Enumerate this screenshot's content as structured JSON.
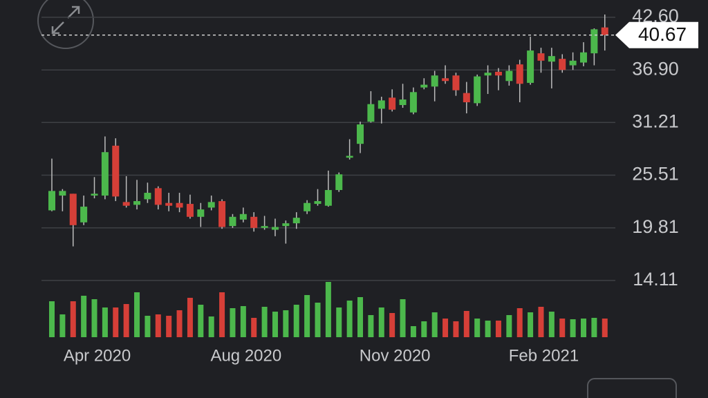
{
  "chart_data": {
    "type": "candlestick",
    "categories": [
      null,
      null,
      null,
      null,
      "Apr 2020",
      null,
      null,
      null,
      null,
      null,
      null,
      null,
      null,
      null,
      null,
      null,
      null,
      null,
      "Aug 2020",
      null,
      null,
      null,
      null,
      null,
      null,
      null,
      null,
      null,
      null,
      null,
      null,
      null,
      "Nov 2020",
      null,
      null,
      null,
      null,
      null,
      null,
      null,
      null,
      null,
      null,
      null,
      null,
      null,
      "Feb 2021",
      null,
      null,
      null,
      null,
      null,
      null
    ],
    "open": [
      21.7,
      23.3,
      23.5,
      20.4,
      23.3,
      23.3,
      28.7,
      22.6,
      22.3,
      22.9,
      24.1,
      22.5,
      22.5,
      22.4,
      21.0,
      22.0,
      22.7,
      20.0,
      20.7,
      21.0,
      19.8,
      19.6,
      20.0,
      20.3,
      21.6,
      22.4,
      22.2,
      23.9,
      27.4,
      28.9,
      31.3,
      32.7,
      33.9,
      33.1,
      32.3,
      35.0,
      35.1,
      36.0,
      36.3,
      34.4,
      33.3,
      36.3,
      36.7,
      35.7,
      37.5,
      35.5,
      38.7,
      37.8,
      38.1,
      37.4,
      37.7,
      38.7,
      41.5
    ],
    "high": [
      27.3,
      24.0,
      23.5,
      23.3,
      25.3,
      29.7,
      29.5,
      25.4,
      25.0,
      24.7,
      24.3,
      23.6,
      23.6,
      23.4,
      22.5,
      23.3,
      22.9,
      21.3,
      22.0,
      21.5,
      21.1,
      20.8,
      20.6,
      21.5,
      22.8,
      24.0,
      26.0,
      25.8,
      29.4,
      31.3,
      34.6,
      34.0,
      34.8,
      35.4,
      35.0,
      36.0,
      36.8,
      37.4,
      36.6,
      35.6,
      36.4,
      37.4,
      37.1,
      37.4,
      38.0,
      40.5,
      39.3,
      39.3,
      38.6,
      38.8,
      39.9,
      41.4,
      42.9
    ],
    "low": [
      21.6,
      21.6,
      17.8,
      20.1,
      23.0,
      22.9,
      22.7,
      22.0,
      21.8,
      22.5,
      21.8,
      21.6,
      21.5,
      20.8,
      19.9,
      21.7,
      19.7,
      19.8,
      20.4,
      19.4,
      19.6,
      18.9,
      18.1,
      19.7,
      21.3,
      22.2,
      22.1,
      23.7,
      27.2,
      27.9,
      31.2,
      31.1,
      32.4,
      32.8,
      32.1,
      34.8,
      33.5,
      35.4,
      34.1,
      32.2,
      33.0,
      34.3,
      34.7,
      35.2,
      33.4,
      35.3,
      36.6,
      34.9,
      36.6,
      36.9,
      37.3,
      37.4,
      39.0
    ],
    "close": [
      23.8,
      23.8,
      20.1,
      22.1,
      23.5,
      28.0,
      23.2,
      22.2,
      22.7,
      23.6,
      22.3,
      22.2,
      22.0,
      21.0,
      21.8,
      22.6,
      19.9,
      21.0,
      21.3,
      19.8,
      20.0,
      19.9,
      20.3,
      20.9,
      22.5,
      22.7,
      23.9,
      25.6,
      27.6,
      31.0,
      33.2,
      33.6,
      32.6,
      33.7,
      34.5,
      35.3,
      36.3,
      35.7,
      34.7,
      33.4,
      36.2,
      36.6,
      36.3,
      36.8,
      35.4,
      39.0,
      37.9,
      38.4,
      36.9,
      37.9,
      38.8,
      41.3,
      40.67
    ],
    "volume": [
      52,
      33,
      52,
      60,
      55,
      43,
      43,
      48,
      65,
      31,
      33,
      31,
      39,
      57,
      47,
      30,
      65,
      42,
      45,
      28,
      44,
      37,
      39,
      47,
      61,
      50,
      80,
      43,
      53,
      58,
      32,
      43,
      35,
      55,
      16,
      23,
      36,
      27,
      23,
      38,
      27,
      24,
      24,
      32,
      42,
      36,
      44,
      37,
      27,
      26,
      27,
      28,
      27
    ],
    "up_color": "#4cb84c",
    "down_color": "#d63f38",
    "last_price": 40.67,
    "ylim": [
      7.82,
      44.47
    ],
    "yticks": [
      {
        "value": 42.6,
        "label": "42.60"
      },
      {
        "value": 36.9,
        "label": "36.90"
      },
      31.21,
      25.51,
      19.81,
      14.11
    ],
    "grid": true
  }
}
